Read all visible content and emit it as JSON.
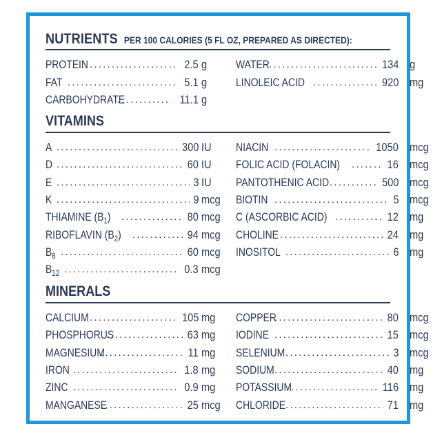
{
  "header": {
    "title": "NUTRIENTS",
    "subtitle": "PER 100 CALORIES (5 FL OZ, PREPARED AS DIRECTED):"
  },
  "nutrients": {
    "left": [
      {
        "name": "PROTEIN",
        "value": "2.5",
        "unit": "g"
      },
      {
        "name": "FAT",
        "value": "5.1",
        "unit": "g"
      },
      {
        "name": "CARBOHYDRATE",
        "value": "11.1",
        "unit": "g"
      }
    ],
    "right": [
      {
        "name": "WATER",
        "value": "134",
        "unit": "g"
      },
      {
        "name": "LINOLEIC ACID",
        "value": "920",
        "unit": "mg"
      }
    ]
  },
  "vitamins": {
    "heading": "VITAMINS",
    "left": [
      {
        "name": "A",
        "value": "300",
        "unit": "IU"
      },
      {
        "name": "D",
        "value": "60",
        "unit": "IU"
      },
      {
        "name": "E",
        "value": "3",
        "unit": "IU"
      },
      {
        "name": "K",
        "value": "9",
        "unit": "mcg"
      },
      {
        "name": "THIAMINE (B",
        "sub": "1",
        "name_end": ")",
        "value": "80",
        "unit": "mcg"
      },
      {
        "name": "RIBOFLAVIN (B",
        "sub": "2",
        "name_end": ")",
        "value": "94",
        "unit": "mcg"
      },
      {
        "name": "B",
        "sub": "6",
        "name_end": "",
        "value": "60",
        "unit": "mcg"
      },
      {
        "name": "B",
        "sub": "12",
        "name_end": "",
        "value": "0.3",
        "unit": "mcg"
      }
    ],
    "right": [
      {
        "name": "NIACIN",
        "value": "1050",
        "unit": "mcg"
      },
      {
        "name": "FOLIC ACID (FOLACIN)",
        "value": "16",
        "unit": "mcg"
      },
      {
        "name": "PANTOTHENIC ACID",
        "value": "500",
        "unit": "mcg"
      },
      {
        "name": "BIOTIN",
        "value": "5",
        "unit": "mcg"
      },
      {
        "name": "C (ASCORBIC ACID)",
        "value": "12",
        "unit": "mg"
      },
      {
        "name": "CHOLINE",
        "value": "24",
        "unit": "mg"
      },
      {
        "name": "INOSITOL",
        "value": "6",
        "unit": "mg"
      }
    ]
  },
  "minerals": {
    "heading": "MINERALS",
    "left": [
      {
        "name": "CALCIUM",
        "value": "105",
        "unit": "mg"
      },
      {
        "name": "PHOSPHORUS",
        "value": "63",
        "unit": "mg"
      },
      {
        "name": "MAGNESIUM",
        "value": "11",
        "unit": "mg"
      },
      {
        "name": "IRON",
        "value": "1.8",
        "unit": "mg"
      },
      {
        "name": "ZINC",
        "value": "0.9",
        "unit": "mg"
      },
      {
        "name": "MANGANESE",
        "value": "25",
        "unit": "mcg"
      }
    ],
    "right": [
      {
        "name": "COPPER",
        "value": "80",
        "unit": "mcg"
      },
      {
        "name": "IODINE",
        "value": "15",
        "unit": "mcg"
      },
      {
        "name": "SELENIUM",
        "value": "3",
        "unit": "mcg"
      },
      {
        "name": "SODIUM",
        "value": "40",
        "unit": "mg"
      },
      {
        "name": "POTASSIUM",
        "value": "116",
        "unit": "mg"
      },
      {
        "name": "CHLORIDE",
        "value": "71",
        "unit": "mg"
      }
    ]
  }
}
